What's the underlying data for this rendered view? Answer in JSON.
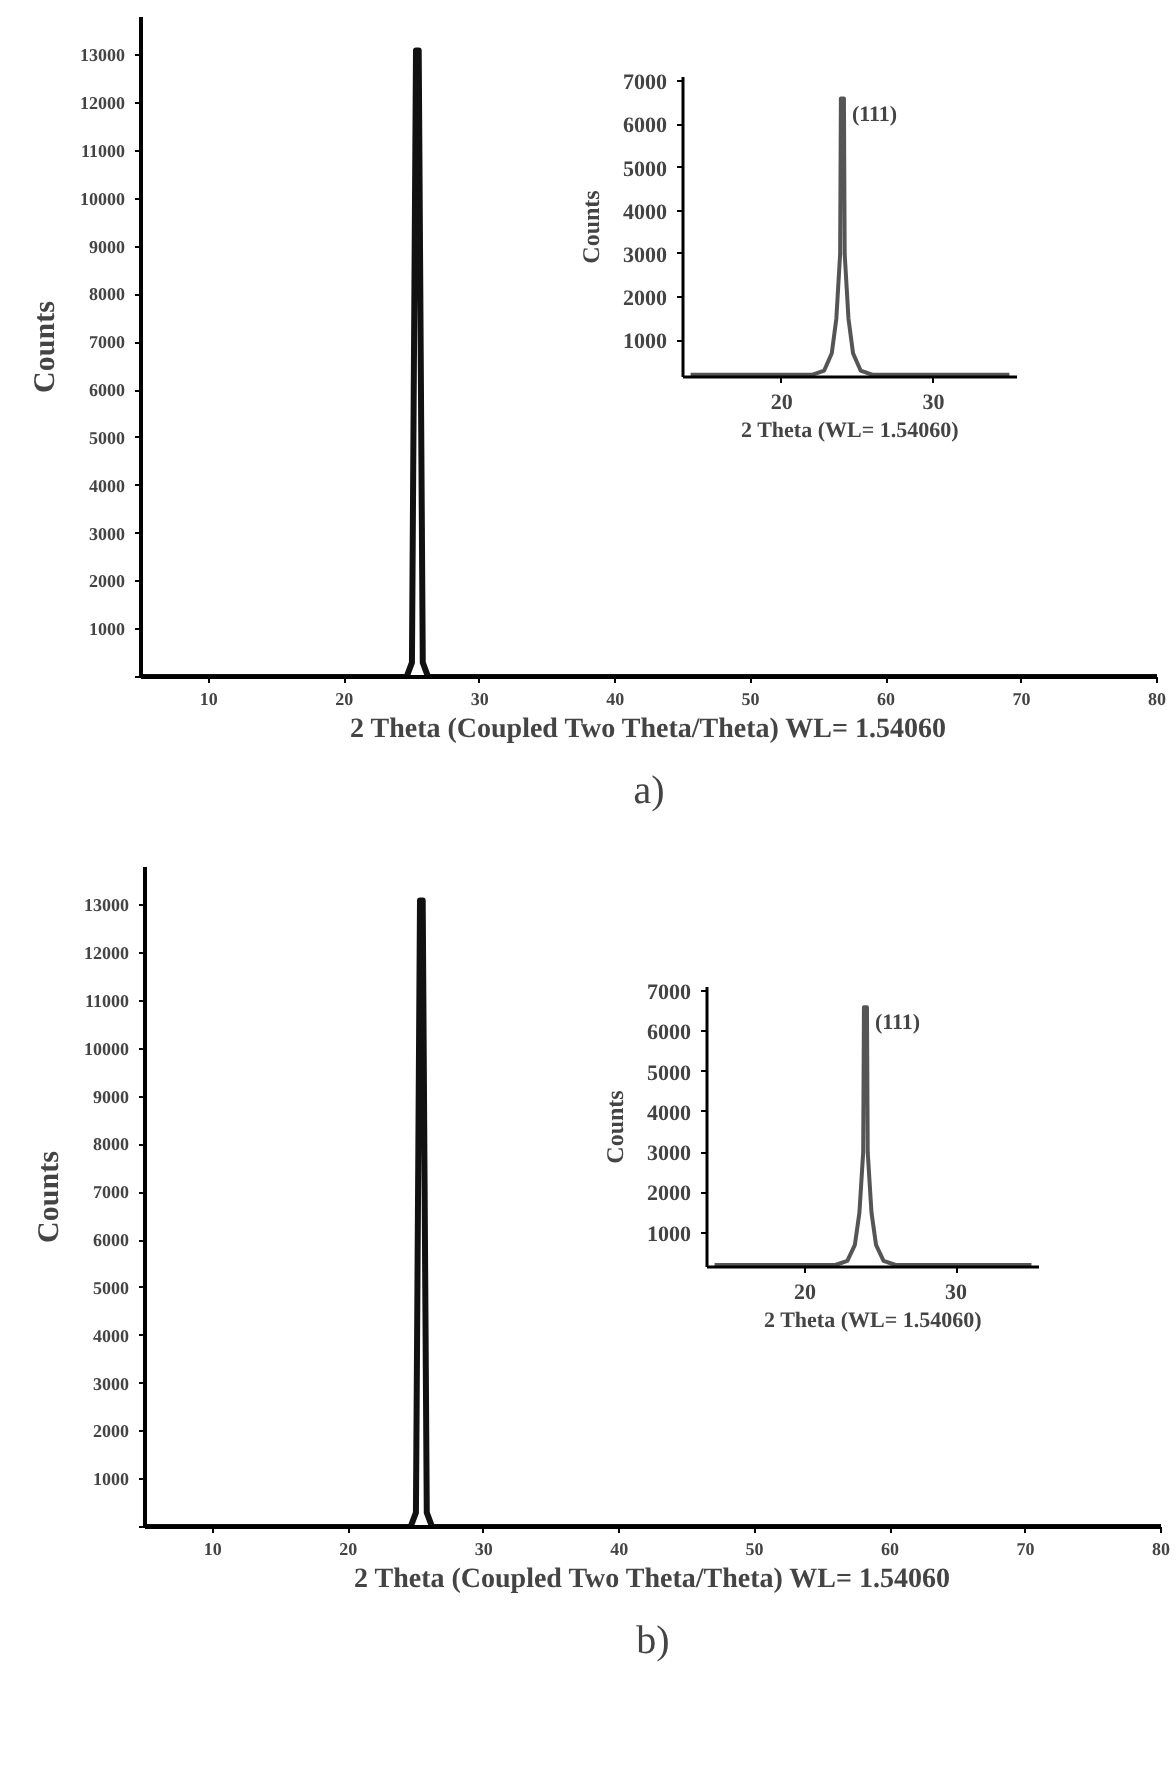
{
  "chart_data": [
    {
      "type": "line",
      "xlabel": "2 Theta (Coupled Two Theta/Theta) WL= 1.54060",
      "ylabel": "Counts",
      "x": [
        5,
        24.6,
        25.0,
        25.3,
        25.5,
        25.8,
        26.2,
        80
      ],
      "values": [
        0,
        0,
        300,
        13100,
        13100,
        300,
        0,
        0
      ],
      "color": "#111111",
      "xlim": [
        5,
        80
      ],
      "ylim": [
        0,
        13800
      ],
      "xticks": [
        10,
        20,
        30,
        40,
        50,
        60,
        70,
        80
      ],
      "yticks": [
        {
          "value": 0,
          "label": null
        },
        1000,
        2000,
        3000,
        4000,
        5000,
        6000,
        7000,
        8000,
        9000,
        10000,
        11000,
        12000,
        13000
      ],
      "grid": false,
      "annotations": [
        "a)"
      ]
    },
    {
      "type": "line",
      "xlabel": "2 Theta (WL= 1.54060)",
      "ylabel": "Counts",
      "x": [
        14,
        22.0,
        22.8,
        23.3,
        23.6,
        23.85,
        23.9,
        24.1,
        24.15,
        24.4,
        24.7,
        25.2,
        26.0,
        35
      ],
      "values": [
        200,
        200,
        300,
        700,
        1500,
        3000,
        6600,
        6600,
        3000,
        1500,
        700,
        300,
        200,
        200
      ],
      "color": "#555555",
      "xlim": [
        13.5,
        35.5
      ],
      "ylim": [
        150,
        7100
      ],
      "xticks": [
        20,
        30
      ],
      "yticks": [
        1000,
        2000,
        3000,
        4000,
        5000,
        6000,
        7000
      ],
      "grid": false,
      "annotations": [
        {
          "text": "(111)",
          "x": 24.1,
          "y": 6600
        }
      ]
    },
    {
      "type": "line",
      "xlabel": "2 Theta (Coupled Two Theta/Theta) WL= 1.54060",
      "ylabel": "Counts",
      "x": [
        5,
        24.6,
        25.0,
        25.3,
        25.5,
        25.8,
        26.2,
        80
      ],
      "values": [
        0,
        0,
        300,
        13100,
        13100,
        300,
        0,
        0
      ],
      "color": "#111111",
      "xlim": [
        5,
        80
      ],
      "ylim": [
        0,
        13800
      ],
      "xticks": [
        10,
        20,
        30,
        40,
        50,
        60,
        70,
        80
      ],
      "yticks": [
        {
          "value": 0,
          "label": null
        },
        1000,
        2000,
        3000,
        4000,
        5000,
        6000,
        7000,
        8000,
        9000,
        10000,
        11000,
        12000,
        13000
      ],
      "grid": false,
      "annotations": [
        "b)"
      ]
    },
    {
      "type": "line",
      "xlabel": "2 Theta (WL= 1.54060)",
      "ylabel": "Counts",
      "x": [
        14,
        22.0,
        22.8,
        23.3,
        23.6,
        23.85,
        23.9,
        24.1,
        24.15,
        24.4,
        24.7,
        25.2,
        26.0,
        35
      ],
      "values": [
        200,
        200,
        300,
        700,
        1500,
        3000,
        6600,
        6600,
        3000,
        1500,
        700,
        300,
        200,
        200
      ],
      "color": "#555555",
      "xlim": [
        13.5,
        35.5
      ],
      "ylim": [
        150,
        7100
      ],
      "xticks": [
        20,
        30
      ],
      "yticks": [
        1000,
        2000,
        3000,
        4000,
        5000,
        6000,
        7000
      ],
      "grid": false,
      "annotations": [
        {
          "text": "(111)",
          "x": 24.1,
          "y": 6600
        }
      ]
    }
  ]
}
